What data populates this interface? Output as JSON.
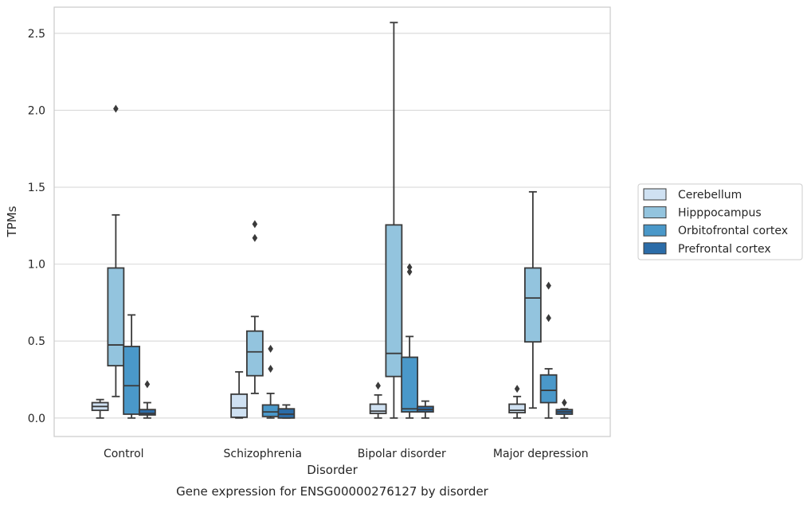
{
  "chart_data": {
    "type": "box",
    "xlabel": "Disorder",
    "ylabel": "TPMs",
    "caption": "Gene expression for ENSG00000276127 by disorder",
    "ylim": [
      -0.12,
      2.67
    ],
    "yticks": [
      "0.0",
      "0.5",
      "1.0",
      "1.5",
      "2.0",
      "2.5"
    ],
    "ytick_values": [
      0,
      0.5,
      1.0,
      1.5,
      2.0,
      2.5
    ],
    "grid": "horizontal",
    "legend_position": "right",
    "categories": [
      "Control",
      "Schizophrenia",
      "Bipolar disorder",
      "Major depression"
    ],
    "series": [
      {
        "name": "Cerebellum",
        "color": "#cfe1f2",
        "boxes": [
          {
            "whisker_low": 0.0,
            "q1": 0.05,
            "median": 0.075,
            "q3": 0.1,
            "whisker_high": 0.12,
            "outliers": []
          },
          {
            "whisker_low": 0.0,
            "q1": 0.005,
            "median": 0.065,
            "q3": 0.155,
            "whisker_high": 0.3,
            "outliers": []
          },
          {
            "whisker_low": 0.0,
            "q1": 0.03,
            "median": 0.045,
            "q3": 0.09,
            "whisker_high": 0.15,
            "outliers": [
              0.21
            ]
          },
          {
            "whisker_low": 0.0,
            "q1": 0.035,
            "median": 0.05,
            "q3": 0.09,
            "whisker_high": 0.14,
            "outliers": [
              0.19
            ]
          }
        ]
      },
      {
        "name": "Hipppocampus",
        "color": "#93c4de",
        "boxes": [
          {
            "whisker_low": 0.14,
            "q1": 0.34,
            "median": 0.475,
            "q3": 0.975,
            "whisker_high": 1.32,
            "outliers": [
              2.01
            ]
          },
          {
            "whisker_low": 0.16,
            "q1": 0.275,
            "median": 0.43,
            "q3": 0.565,
            "whisker_high": 0.66,
            "outliers": [
              1.17,
              1.26
            ]
          },
          {
            "whisker_low": 0.0,
            "q1": 0.27,
            "median": 0.42,
            "q3": 1.255,
            "whisker_high": 2.57,
            "outliers": []
          },
          {
            "whisker_low": 0.065,
            "q1": 0.495,
            "median": 0.78,
            "q3": 0.975,
            "whisker_high": 1.47,
            "outliers": []
          }
        ]
      },
      {
        "name": "Orbitofrontal cortex",
        "color": "#4a98c9",
        "boxes": [
          {
            "whisker_low": 0.0,
            "q1": 0.025,
            "median": 0.21,
            "q3": 0.465,
            "whisker_high": 0.67,
            "outliers": []
          },
          {
            "whisker_low": 0.0,
            "q1": 0.01,
            "median": 0.04,
            "q3": 0.085,
            "whisker_high": 0.16,
            "outliers": [
              0.32,
              0.45
            ]
          },
          {
            "whisker_low": 0.0,
            "q1": 0.04,
            "median": 0.06,
            "q3": 0.395,
            "whisker_high": 0.53,
            "outliers": [
              0.95,
              0.98
            ]
          },
          {
            "whisker_low": 0.0,
            "q1": 0.1,
            "median": 0.18,
            "q3": 0.28,
            "whisker_high": 0.32,
            "outliers": [
              0.65,
              0.86
            ]
          }
        ]
      },
      {
        "name": "Prefrontal cortex",
        "color": "#2b6ca8",
        "boxes": [
          {
            "whisker_low": 0.0,
            "q1": 0.02,
            "median": 0.03,
            "q3": 0.055,
            "whisker_high": 0.1,
            "outliers": [
              0.22
            ]
          },
          {
            "whisker_low": 0.0,
            "q1": 0.0,
            "median": 0.025,
            "q3": 0.06,
            "whisker_high": 0.085,
            "outliers": []
          },
          {
            "whisker_low": 0.0,
            "q1": 0.04,
            "median": 0.055,
            "q3": 0.075,
            "whisker_high": 0.11,
            "outliers": []
          },
          {
            "whisker_low": 0.0,
            "q1": 0.025,
            "median": 0.04,
            "q3": 0.055,
            "whisker_high": 0.06,
            "outliers": [
              0.1
            ]
          }
        ]
      }
    ]
  }
}
